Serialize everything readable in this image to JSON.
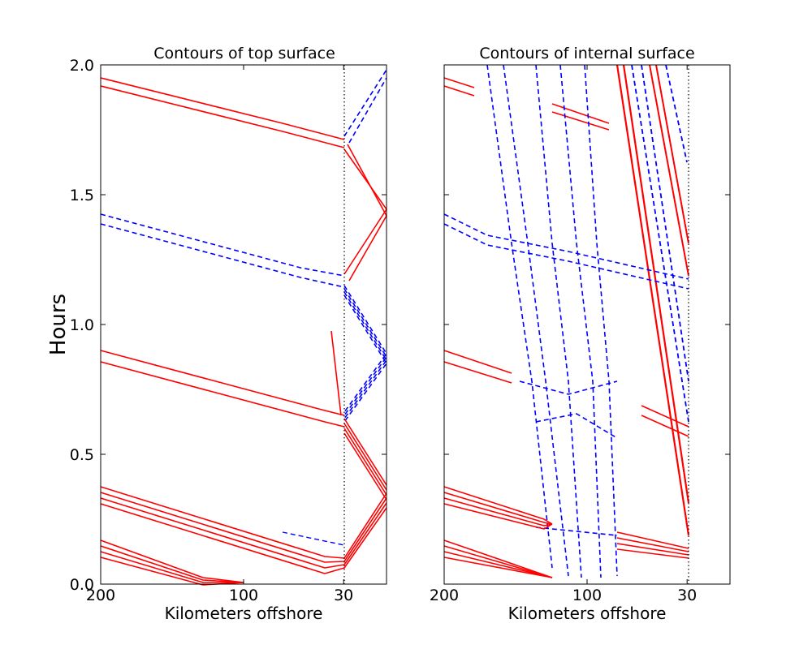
{
  "chart_data": [
    {
      "type": "contour",
      "title": "Contours of top surface",
      "xlabel": "Kilometers offshore",
      "ylabel": "Hours",
      "xlim": [
        200,
        0
      ],
      "ylim": [
        0.0,
        2.0
      ],
      "xticks": [
        200,
        100,
        30
      ],
      "yticks": [
        "0.0",
        "0.5",
        "1.0",
        "1.5",
        "2.0"
      ],
      "reference_line": {
        "x": 30,
        "style": "dotted",
        "color": "#000000"
      },
      "series": [
        {
          "sign": "positive",
          "color": "#ff0000",
          "linestyle": "solid"
        },
        {
          "sign": "negative",
          "color": "#0000ff",
          "linestyle": "dashed"
        }
      ]
    },
    {
      "type": "contour",
      "title": "Contours of internal surface",
      "xlabel": "Kilometers offshore",
      "xlim": [
        200,
        0
      ],
      "ylim": [
        0.0,
        2.0
      ],
      "xticks": [
        200,
        100,
        30
      ],
      "reference_line": {
        "x": 30,
        "style": "dotted",
        "color": "#000000"
      },
      "series": [
        {
          "sign": "positive",
          "color": "#ff0000",
          "linestyle": "solid"
        },
        {
          "sign": "negative",
          "color": "#0000ff",
          "linestyle": "dashed"
        }
      ]
    }
  ]
}
